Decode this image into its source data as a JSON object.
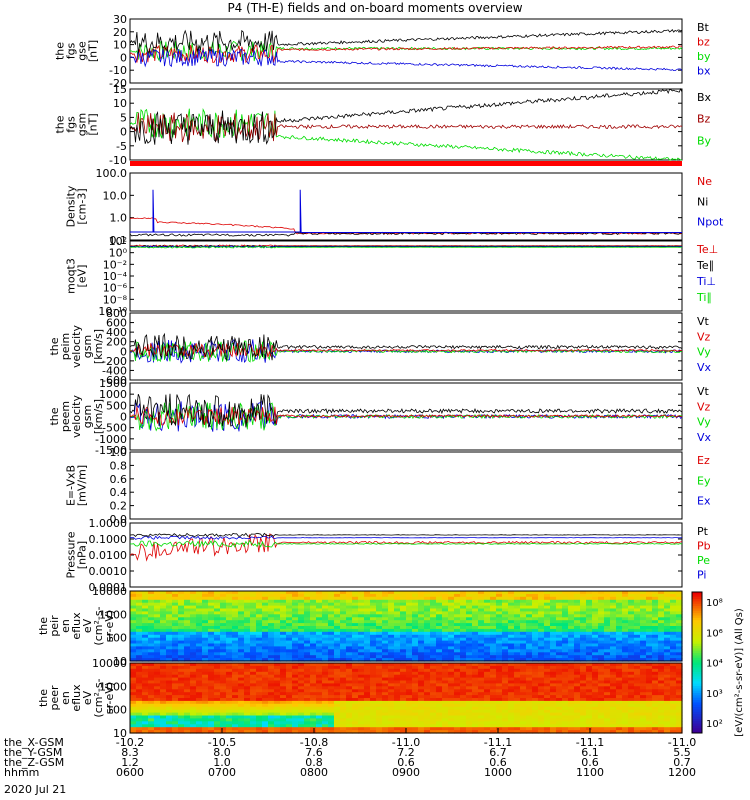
{
  "title": "P4 (TH-E) fields and on-board moments overview",
  "date": "2020 Jul 21",
  "colors": {
    "black": "#000000",
    "red": "#dd0000",
    "green": "#00dd00",
    "blue": "#0000dd",
    "darkred": "#a00000",
    "brightred": "#ff0000"
  },
  "chart_data": [
    {
      "type": "line",
      "name": "fgs-gse",
      "ylabel": [
        "the",
        "fgs",
        "gse",
        "[nT]"
      ],
      "yticks": [
        "30",
        "20",
        "10",
        "0",
        "-10",
        "-20"
      ],
      "ylim": [
        -20,
        30
      ],
      "legend": [
        {
          "label": "Bt",
          "color": "black"
        },
        {
          "label": "bz",
          "color": "red"
        },
        {
          "label": "by",
          "color": "green"
        },
        {
          "label": "bx",
          "color": "blue"
        }
      ]
    },
    {
      "type": "line",
      "name": "fgs-gsm",
      "ylabel": [
        "the",
        "fgs",
        "gsm",
        "[nT]"
      ],
      "yticks": [
        "15",
        "10",
        "5",
        "0",
        "-5",
        "-10"
      ],
      "ylim": [
        -13,
        20
      ],
      "legend": [
        {
          "label": "Bx",
          "color": "black"
        },
        {
          "label": "Bz",
          "color": "darkred"
        },
        {
          "label": "By",
          "color": "green"
        }
      ]
    },
    {
      "type": "line",
      "name": "density",
      "ylabel": [
        "Density",
        "[cm-3]"
      ],
      "yticks": [
        "100.0",
        "10.0",
        "1.0",
        "0.1"
      ],
      "yscale": "log",
      "legend": [
        {
          "label": "Ne",
          "color": "red"
        },
        {
          "label": "Ni",
          "color": "black"
        },
        {
          "label": "Npot",
          "color": "blue"
        }
      ]
    },
    {
      "type": "line",
      "name": "temperature",
      "ylabel": [
        "moqt3",
        "[eV]"
      ],
      "yticks": [
        "10²",
        "10⁰",
        "10⁻²",
        "10⁻⁴",
        "10⁻⁶",
        "10⁻⁸",
        "10⁻¹⁰"
      ],
      "yscale": "log",
      "legend": [
        {
          "label": "Te⊥",
          "color": "red"
        },
        {
          "label": "Te∥",
          "color": "black"
        },
        {
          "label": "Ti⊥",
          "color": "blue"
        },
        {
          "label": "Ti∥",
          "color": "green"
        }
      ]
    },
    {
      "type": "line",
      "name": "peim-velocity",
      "ylabel": [
        "the",
        "peim",
        "velocity",
        "gsm",
        "[km/s]"
      ],
      "yticks": [
        "800",
        "600",
        "400",
        "200",
        "0",
        "-200",
        "-400",
        "-600"
      ],
      "ylim": [
        -600,
        800
      ],
      "legend": [
        {
          "label": "Vt",
          "color": "black"
        },
        {
          "label": "Vz",
          "color": "red"
        },
        {
          "label": "Vy",
          "color": "green"
        },
        {
          "label": "Vx",
          "color": "blue"
        }
      ]
    },
    {
      "type": "line",
      "name": "peem-velocity",
      "ylabel": [
        "the",
        "peem",
        "velocity",
        "gsm",
        "[km/s]"
      ],
      "yticks": [
        "1500",
        "1000",
        "500",
        "0",
        "-500",
        "-1000",
        "-1500"
      ],
      "ylim": [
        -1500,
        1500
      ],
      "legend": [
        {
          "label": "Vt",
          "color": "black"
        },
        {
          "label": "Vz",
          "color": "red"
        },
        {
          "label": "Vy",
          "color": "green"
        },
        {
          "label": "Vx",
          "color": "blue"
        }
      ]
    },
    {
      "type": "line",
      "name": "efield",
      "ylabel": [
        "E=-VxB",
        "[mV/m]"
      ],
      "yticks": [
        "1.0",
        "0.8",
        "0.6",
        "0.4",
        "0.2",
        "0.0"
      ],
      "ylim": [
        0,
        1
      ],
      "legend": [
        {
          "label": "Ez",
          "color": "red"
        },
        {
          "label": "Ey",
          "color": "green"
        },
        {
          "label": "Ex",
          "color": "blue"
        }
      ]
    },
    {
      "type": "line",
      "name": "pressure",
      "ylabel": [
        "Pressure",
        "[nPa]"
      ],
      "yticks": [
        "1.0000",
        "0.1000",
        "0.0100",
        "0.0010",
        "0.0001"
      ],
      "yscale": "log",
      "legend": [
        {
          "label": "Pt",
          "color": "black"
        },
        {
          "label": "Pb",
          "color": "red"
        },
        {
          "label": "Pe",
          "color": "green"
        },
        {
          "label": "Pi",
          "color": "blue"
        }
      ]
    },
    {
      "type": "heatmap",
      "name": "peir-spectrogram",
      "ylabel": [
        "the",
        "peir",
        "en",
        "eflux",
        "eV",
        "(cm²-s-",
        "sr-eV)"
      ],
      "yticks": [
        "10000",
        "1000",
        "100",
        "10"
      ],
      "yscale": "log"
    },
    {
      "type": "heatmap",
      "name": "peer-spectrogram",
      "ylabel": [
        "the",
        "peer",
        "en",
        "eflux",
        "eV",
        "(cm²-s-",
        "sr-eV)"
      ],
      "yticks": [
        "10000",
        "1000",
        "100",
        "10"
      ],
      "yscale": "log"
    }
  ],
  "colorbar": {
    "ticks": [
      "10⁸",
      "10⁶",
      "10⁴",
      "10³",
      "10²"
    ],
    "label": "[eV/(cm²-s-sr-eV)] (All Qs)"
  },
  "xaxis": {
    "rows": [
      {
        "label": "the_X-GSM",
        "values": [
          "-10.2",
          "-10.5",
          "-10.8",
          "-11.0",
          "-11.1",
          "-11.1",
          "-11.0"
        ]
      },
      {
        "label": "the_Y-GSM",
        "values": [
          "8.3",
          "8.0",
          "7.6",
          "7.2",
          "6.7",
          "6.1",
          "5.5"
        ]
      },
      {
        "label": "the_Z-GSM",
        "values": [
          "1.2",
          "1.0",
          "0.8",
          "0.6",
          "0.6",
          "0.6",
          "0.7"
        ]
      },
      {
        "label": "hhmm",
        "values": [
          "0600",
          "0700",
          "0800",
          "0900",
          "1000",
          "1100",
          "1200"
        ]
      }
    ]
  }
}
